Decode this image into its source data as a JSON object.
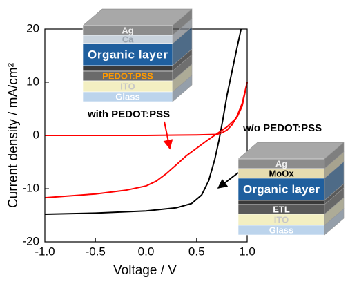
{
  "chart_data": {
    "type": "line",
    "xlabel": "Voltage / V",
    "ylabel": "Current density / mA/cm²",
    "xlim": [
      -1.0,
      1.0
    ],
    "ylim": [
      -20,
      20
    ],
    "xticks": [
      {
        "value": -1.0,
        "label": "-1.0"
      },
      {
        "value": -0.5,
        "label": "-0.5"
      },
      {
        "value": 0.0,
        "label": "0.0"
      },
      {
        "value": 0.5,
        "label": "0.5"
      },
      {
        "value": 1.0,
        "label": "1.0"
      }
    ],
    "yticks": [
      -20,
      -10,
      0,
      10,
      20
    ],
    "series": [
      {
        "color": "#000000",
        "x": [
          -1.0,
          -0.5,
          0.0,
          0.3,
          0.45,
          0.55,
          0.62,
          0.68,
          0.72,
          0.76,
          0.8,
          0.85,
          0.9,
          0.94
        ],
        "y": [
          -14.8,
          -14.6,
          -14.2,
          -13.6,
          -12.8,
          -11.2,
          -8.5,
          -4.5,
          -1.0,
          3.0,
          7.5,
          12.0,
          16.5,
          20.0
        ]
      },
      {
        "color": "#ff0000",
        "x": [
          -1.0,
          -0.5,
          -0.2,
          0.0,
          0.1,
          0.2,
          0.3,
          0.4,
          0.5,
          0.6,
          0.7,
          0.8,
          0.9,
          0.95,
          1.0
        ],
        "y": [
          -11.7,
          -11.0,
          -10.3,
          -9.5,
          -8.6,
          -7.2,
          -5.5,
          -3.8,
          -2.4,
          -1.0,
          0.3,
          1.6,
          3.4,
          5.5,
          10.0
        ]
      },
      {
        "color": "#ff0000",
        "x": [
          -1.0,
          -0.5,
          0.0,
          0.5,
          0.7,
          0.75,
          0.8,
          0.85,
          0.9,
          0.95,
          1.0
        ],
        "y": [
          0.0,
          0.0,
          0.0,
          0.1,
          0.2,
          0.5,
          1.0,
          2.0,
          3.6,
          6.0,
          10.0
        ]
      }
    ],
    "annotations": [
      "with PEDOT:PSS",
      "w/o PEDOT:PSS"
    ],
    "stacks": [
      {
        "layers": [
          {
            "label": "Ag",
            "color": "#8c8c8c",
            "text_color": "#eeeeee"
          },
          {
            "label": "Ca",
            "color": "#c9d3dd",
            "text_color": "#9aa4ae"
          },
          {
            "label": "Organic layer",
            "color": "#1f5f9e",
            "text_color": "#ffffff"
          },
          {
            "label": null,
            "color": "#3a3a3a",
            "text_color": "#ffffff"
          },
          {
            "label": "PEDOT:PSS",
            "color": "#6a6a6a",
            "text_color": "#ff9a00"
          },
          {
            "label": "ITO",
            "color": "#f3efc2",
            "text_color": "#c7c7c7"
          },
          {
            "label": "Glass",
            "color": "#bcd4ec",
            "text_color": "#ffffff"
          }
        ]
      },
      {
        "layers": [
          {
            "label": "Ag",
            "color": "#8c8c8c",
            "text_color": "#eeeeee"
          },
          {
            "label": "MoOx",
            "color": "#e6dcb0",
            "text_color": "#000000"
          },
          {
            "label": "Organic layer",
            "color": "#1f5f9e",
            "text_color": "#ffffff"
          },
          {
            "label": null,
            "color": "#3a3a3a",
            "text_color": "#ffffff"
          },
          {
            "label": "ETL",
            "color": "#5a5a5a",
            "text_color": "#ffffff"
          },
          {
            "label": "ITO",
            "color": "#f3efc2",
            "text_color": "#c7c7c7"
          },
          {
            "label": "Glass",
            "color": "#bcd4ec",
            "text_color": "#ffffff"
          }
        ]
      }
    ]
  }
}
